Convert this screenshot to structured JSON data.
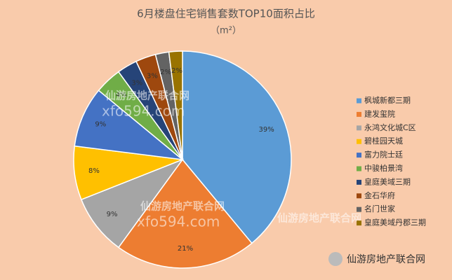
{
  "chart_data": {
    "type": "pie",
    "title": "6月楼盘住宅销售套数TOP10面积占比",
    "subtitle": "（m²）",
    "categories": [
      "枫城新都三期",
      "建发玺院",
      "永鸿文化城C区",
      "碧桂园天城",
      "富力院士廷",
      "中骏柏景湾",
      "皇庭美域三期",
      "金石华府",
      "名门世家",
      "皇庭美域丹郡三期"
    ],
    "values": [
      39,
      21,
      9,
      8,
      9,
      4,
      3,
      3,
      2,
      2
    ],
    "value_labels": [
      "39%",
      "21%",
      "9%",
      "8%",
      "9%",
      "4%",
      "3%",
      "3%",
      "2%",
      "2%"
    ],
    "colors": [
      "#5b9bd5",
      "#ed7d31",
      "#a5a5a5",
      "#ffc000",
      "#4472c4",
      "#70ad47",
      "#264478",
      "#9e480e",
      "#636363",
      "#997300"
    ],
    "legend": "right"
  },
  "watermark": {
    "name": "仙游房地产联合网",
    "url": "xfo594.com"
  },
  "footer_brand": "仙游房地产联合网"
}
